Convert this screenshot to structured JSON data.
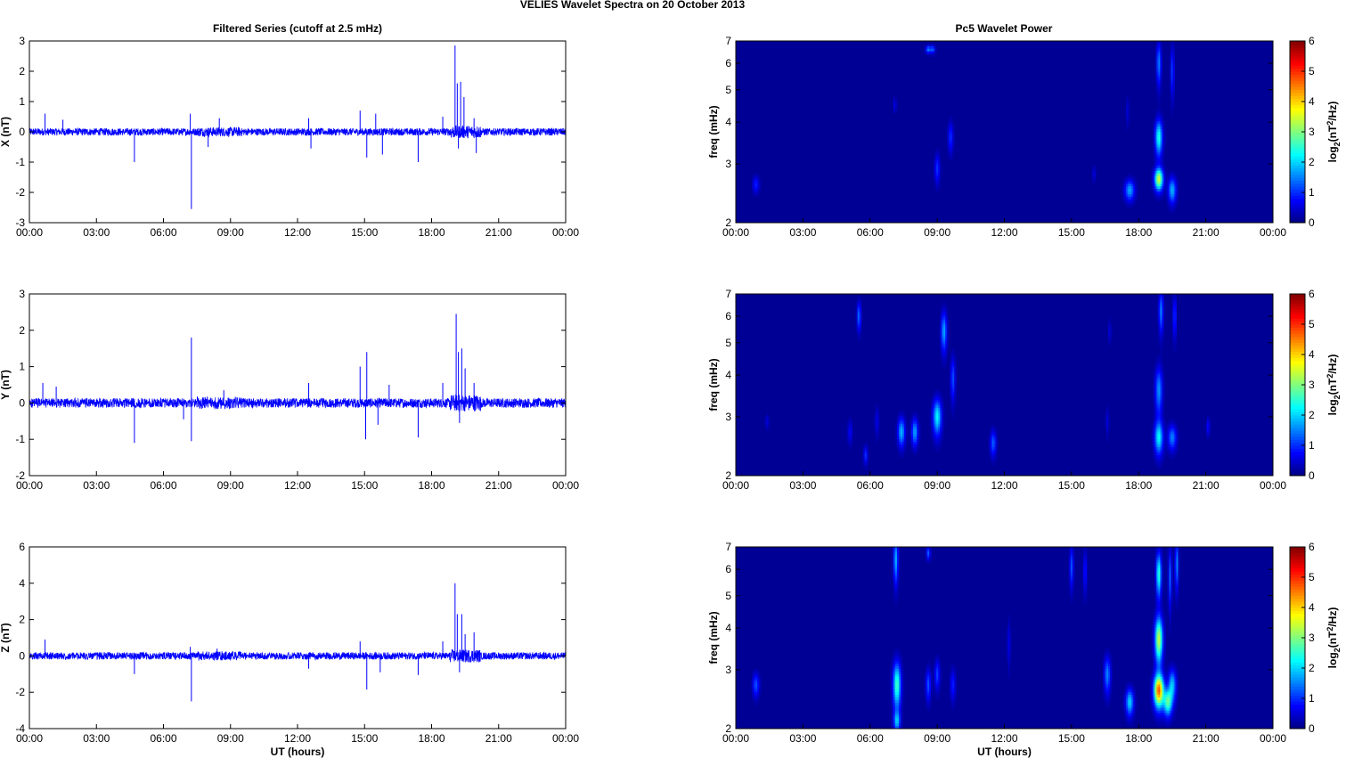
{
  "figure": {
    "title": "VELIES Wavelet Spectra on 20 October   2013",
    "left_title": "Filtered Series (cutoff at 2.5 mHz)",
    "right_title": "Pc5 Wavelet Power",
    "x_label": "UT (hours)",
    "x_ticks": [
      "00:00",
      "03:00",
      "06:00",
      "09:00",
      "12:00",
      "15:00",
      "18:00",
      "21:00",
      "00:00"
    ],
    "freq_label": "freq (mHz)",
    "colorbar_label": "log2(nT2/Hz)",
    "colorbar_ticks": [
      "0",
      "1",
      "2",
      "3",
      "4",
      "5",
      "6"
    ]
  },
  "chart_data": [
    {
      "type": "line",
      "component": "X",
      "ylabel": "X (nT)",
      "ylim": [
        -3,
        3
      ],
      "yticks": [
        "-3",
        "-2",
        "-1",
        "0",
        "1",
        "2",
        "3"
      ],
      "line_color": "#0000ff",
      "noise_amplitude": 0.12,
      "spikes": [
        {
          "t": 0.7,
          "v": 0.6
        },
        {
          "t": 1.5,
          "v": 0.4
        },
        {
          "t": 4.7,
          "v": -1.0
        },
        {
          "t": 7.2,
          "v": 0.6
        },
        {
          "t": 7.25,
          "v": -2.55
        },
        {
          "t": 8.5,
          "v": 0.45
        },
        {
          "t": 8.0,
          "v": -0.5
        },
        {
          "t": 12.5,
          "v": 0.45
        },
        {
          "t": 12.6,
          "v": -0.55
        },
        {
          "t": 14.8,
          "v": 0.7
        },
        {
          "t": 15.1,
          "v": -0.85
        },
        {
          "t": 15.5,
          "v": 0.6
        },
        {
          "t": 15.8,
          "v": -0.75
        },
        {
          "t": 17.4,
          "v": -1.0
        },
        {
          "t": 18.5,
          "v": 0.5
        },
        {
          "t": 19.05,
          "v": 2.85
        },
        {
          "t": 19.15,
          "v": 1.6
        },
        {
          "t": 19.3,
          "v": 1.65
        },
        {
          "t": 19.45,
          "v": 1.15
        },
        {
          "t": 19.2,
          "v": -0.55
        },
        {
          "t": 19.9,
          "v": 0.45
        },
        {
          "t": 20.0,
          "v": -0.7
        }
      ]
    },
    {
      "type": "line",
      "component": "Y",
      "ylabel": "Y (nT)",
      "ylim": [
        -2,
        3
      ],
      "yticks": [
        "-2",
        "-1",
        "0",
        "1",
        "2",
        "3"
      ],
      "line_color": "#0000ff",
      "noise_amplitude": 0.13,
      "spikes": [
        {
          "t": 0.6,
          "v": 0.55
        },
        {
          "t": 1.2,
          "v": 0.45
        },
        {
          "t": 4.7,
          "v": -1.1
        },
        {
          "t": 6.9,
          "v": -0.45
        },
        {
          "t": 7.25,
          "v": 1.8
        },
        {
          "t": 7.25,
          "v": -1.05
        },
        {
          "t": 8.7,
          "v": 0.35
        },
        {
          "t": 12.5,
          "v": 0.55
        },
        {
          "t": 14.8,
          "v": 1.0
        },
        {
          "t": 15.1,
          "v": 1.4
        },
        {
          "t": 15.05,
          "v": -1.0
        },
        {
          "t": 15.6,
          "v": -0.6
        },
        {
          "t": 16.1,
          "v": 0.5
        },
        {
          "t": 17.4,
          "v": -0.95
        },
        {
          "t": 18.5,
          "v": 0.55
        },
        {
          "t": 19.1,
          "v": 2.45
        },
        {
          "t": 19.2,
          "v": 1.4
        },
        {
          "t": 19.35,
          "v": 1.5
        },
        {
          "t": 19.5,
          "v": 0.95
        },
        {
          "t": 19.25,
          "v": -0.55
        },
        {
          "t": 19.9,
          "v": 0.55
        }
      ]
    },
    {
      "type": "line",
      "component": "Z",
      "ylabel": "Z (nT)",
      "ylim": [
        -4,
        6
      ],
      "yticks": [
        "-4",
        "-2",
        "0",
        "2",
        "4",
        "6"
      ],
      "line_color": "#0000ff",
      "noise_amplitude": 0.2,
      "spikes": [
        {
          "t": 0.7,
          "v": 0.9
        },
        {
          "t": 4.7,
          "v": -1.0
        },
        {
          "t": 7.2,
          "v": 0.5
        },
        {
          "t": 7.25,
          "v": -2.5
        },
        {
          "t": 8.4,
          "v": 0.4
        },
        {
          "t": 12.5,
          "v": -0.7
        },
        {
          "t": 14.8,
          "v": 0.8
        },
        {
          "t": 15.1,
          "v": -1.85
        },
        {
          "t": 15.7,
          "v": -0.9
        },
        {
          "t": 17.4,
          "v": -1.05
        },
        {
          "t": 18.5,
          "v": 0.8
        },
        {
          "t": 19.05,
          "v": 4.0
        },
        {
          "t": 19.15,
          "v": 2.3
        },
        {
          "t": 19.35,
          "v": 2.3
        },
        {
          "t": 19.5,
          "v": 1.2
        },
        {
          "t": 19.25,
          "v": -0.9
        },
        {
          "t": 19.9,
          "v": 1.3
        }
      ]
    },
    {
      "type": "heatmap",
      "component": "X",
      "ylabel": "freq (mHz)",
      "y_scale": "log",
      "ylim": [
        2,
        7
      ],
      "yticks": [
        "2",
        "3",
        "4",
        "5",
        "6",
        "7"
      ],
      "colormap": "jet",
      "color_range": [
        0,
        6
      ],
      "blobs": [
        {
          "t": 0.9,
          "f": 2.6,
          "tw": 0.1,
          "fw": 0.1,
          "a": 0.8
        },
        {
          "t": 7.1,
          "f": 4.5,
          "tw": 0.05,
          "fw": 0.15,
          "a": 0.5
        },
        {
          "t": 8.6,
          "f": 6.6,
          "tw": 0.08,
          "fw": 0.12,
          "a": 1.4
        },
        {
          "t": 8.8,
          "f": 6.6,
          "tw": 0.07,
          "fw": 0.12,
          "a": 1.2
        },
        {
          "t": 9.0,
          "f": 2.9,
          "tw": 0.08,
          "fw": 0.2,
          "a": 0.9
        },
        {
          "t": 9.6,
          "f": 3.6,
          "tw": 0.08,
          "fw": 0.25,
          "a": 0.9
        },
        {
          "t": 16.0,
          "f": 2.8,
          "tw": 0.06,
          "fw": 0.1,
          "a": 0.4
        },
        {
          "t": 17.5,
          "f": 4.3,
          "tw": 0.05,
          "fw": 0.3,
          "a": 0.4
        },
        {
          "t": 17.6,
          "f": 2.5,
          "tw": 0.15,
          "fw": 0.12,
          "a": 1.6
        },
        {
          "t": 18.9,
          "f": 2.7,
          "tw": 0.13,
          "fw": 0.14,
          "a": 3.4
        },
        {
          "t": 18.9,
          "f": 3.6,
          "tw": 0.11,
          "fw": 0.3,
          "a": 2.3
        },
        {
          "t": 18.9,
          "f": 6.0,
          "tw": 0.07,
          "fw": 0.6,
          "a": 1.4
        },
        {
          "t": 19.5,
          "f": 2.5,
          "tw": 0.12,
          "fw": 0.15,
          "a": 1.7
        },
        {
          "t": 19.5,
          "f": 5.7,
          "tw": 0.05,
          "fw": 0.7,
          "a": 1.0
        }
      ]
    },
    {
      "type": "heatmap",
      "component": "Y",
      "ylabel": "freq (mHz)",
      "y_scale": "log",
      "ylim": [
        2,
        7
      ],
      "yticks": [
        "2",
        "3",
        "4",
        "5",
        "6",
        "7"
      ],
      "colormap": "jet",
      "color_range": [
        0,
        6
      ],
      "blobs": [
        {
          "t": 1.4,
          "f": 2.9,
          "tw": 0.06,
          "fw": 0.1,
          "a": 0.4
        },
        {
          "t": 5.1,
          "f": 2.7,
          "tw": 0.07,
          "fw": 0.15,
          "a": 0.6
        },
        {
          "t": 5.5,
          "f": 6.0,
          "tw": 0.06,
          "fw": 0.4,
          "a": 1.3
        },
        {
          "t": 5.8,
          "f": 2.3,
          "tw": 0.06,
          "fw": 0.1,
          "a": 0.9
        },
        {
          "t": 6.3,
          "f": 2.9,
          "tw": 0.06,
          "fw": 0.2,
          "a": 0.5
        },
        {
          "t": 7.4,
          "f": 2.7,
          "tw": 0.11,
          "fw": 0.18,
          "a": 1.7
        },
        {
          "t": 8.0,
          "f": 2.7,
          "tw": 0.1,
          "fw": 0.17,
          "a": 1.6
        },
        {
          "t": 9.0,
          "f": 3.0,
          "tw": 0.13,
          "fw": 0.25,
          "a": 2.1
        },
        {
          "t": 9.3,
          "f": 5.4,
          "tw": 0.09,
          "fw": 0.5,
          "a": 1.6
        },
        {
          "t": 9.7,
          "f": 3.9,
          "tw": 0.07,
          "fw": 0.4,
          "a": 1.1
        },
        {
          "t": 11.5,
          "f": 2.5,
          "tw": 0.09,
          "fw": 0.15,
          "a": 1.2
        },
        {
          "t": 16.6,
          "f": 2.9,
          "tw": 0.05,
          "fw": 0.2,
          "a": 0.4
        },
        {
          "t": 16.7,
          "f": 5.4,
          "tw": 0.05,
          "fw": 0.3,
          "a": 0.4
        },
        {
          "t": 18.9,
          "f": 2.6,
          "tw": 0.13,
          "fw": 0.2,
          "a": 2.1
        },
        {
          "t": 18.9,
          "f": 3.6,
          "tw": 0.11,
          "fw": 0.4,
          "a": 1.5
        },
        {
          "t": 19.0,
          "f": 6.2,
          "tw": 0.07,
          "fw": 0.6,
          "a": 1.4
        },
        {
          "t": 19.5,
          "f": 2.6,
          "tw": 0.13,
          "fw": 0.15,
          "a": 1.4
        },
        {
          "t": 19.6,
          "f": 6.0,
          "tw": 0.05,
          "fw": 0.6,
          "a": 1.0
        },
        {
          "t": 21.1,
          "f": 2.8,
          "tw": 0.05,
          "fw": 0.12,
          "a": 0.7
        }
      ]
    },
    {
      "type": "heatmap",
      "component": "Z",
      "ylabel": "freq (mHz)",
      "y_scale": "log",
      "ylim": [
        2,
        7
      ],
      "yticks": [
        "2",
        "3",
        "4",
        "5",
        "6",
        "7"
      ],
      "colormap": "jet",
      "color_range": [
        0,
        6
      ],
      "blobs": [
        {
          "t": 0.9,
          "f": 2.7,
          "tw": 0.1,
          "fw": 0.15,
          "a": 1.1
        },
        {
          "t": 7.2,
          "f": 2.7,
          "tw": 0.12,
          "fw": 0.3,
          "a": 2.5
        },
        {
          "t": 7.15,
          "f": 6.4,
          "tw": 0.07,
          "fw": 0.7,
          "a": 1.7
        },
        {
          "t": 7.2,
          "f": 2.1,
          "tw": 0.1,
          "fw": 0.1,
          "a": 1.6
        },
        {
          "t": 8.6,
          "f": 2.7,
          "tw": 0.08,
          "fw": 0.2,
          "a": 1.1
        },
        {
          "t": 8.6,
          "f": 6.7,
          "tw": 0.06,
          "fw": 0.2,
          "a": 1.2
        },
        {
          "t": 9.0,
          "f": 2.9,
          "tw": 0.08,
          "fw": 0.2,
          "a": 1.0
        },
        {
          "t": 9.7,
          "f": 2.7,
          "tw": 0.08,
          "fw": 0.2,
          "a": 0.8
        },
        {
          "t": 12.2,
          "f": 3.6,
          "tw": 0.05,
          "fw": 0.4,
          "a": 0.5
        },
        {
          "t": 15.0,
          "f": 6.1,
          "tw": 0.06,
          "fw": 0.6,
          "a": 1.1
        },
        {
          "t": 15.6,
          "f": 5.9,
          "tw": 0.05,
          "fw": 0.6,
          "a": 0.8
        },
        {
          "t": 16.6,
          "f": 2.9,
          "tw": 0.1,
          "fw": 0.25,
          "a": 1.4
        },
        {
          "t": 17.6,
          "f": 2.4,
          "tw": 0.12,
          "fw": 0.15,
          "a": 1.9
        },
        {
          "t": 18.9,
          "f": 2.6,
          "tw": 0.15,
          "fw": 0.2,
          "a": 4.6
        },
        {
          "t": 18.9,
          "f": 3.7,
          "tw": 0.12,
          "fw": 0.4,
          "a": 3.3
        },
        {
          "t": 18.9,
          "f": 5.8,
          "tw": 0.08,
          "fw": 0.6,
          "a": 2.4
        },
        {
          "t": 19.3,
          "f": 2.4,
          "tw": 0.13,
          "fw": 0.15,
          "a": 2.6
        },
        {
          "t": 19.4,
          "f": 5.7,
          "tw": 0.05,
          "fw": 0.8,
          "a": 1.2
        },
        {
          "t": 19.5,
          "f": 2.7,
          "tw": 0.12,
          "fw": 0.2,
          "a": 1.8
        },
        {
          "t": 19.7,
          "f": 6.2,
          "tw": 0.05,
          "fw": 0.7,
          "a": 1.5
        }
      ]
    }
  ]
}
